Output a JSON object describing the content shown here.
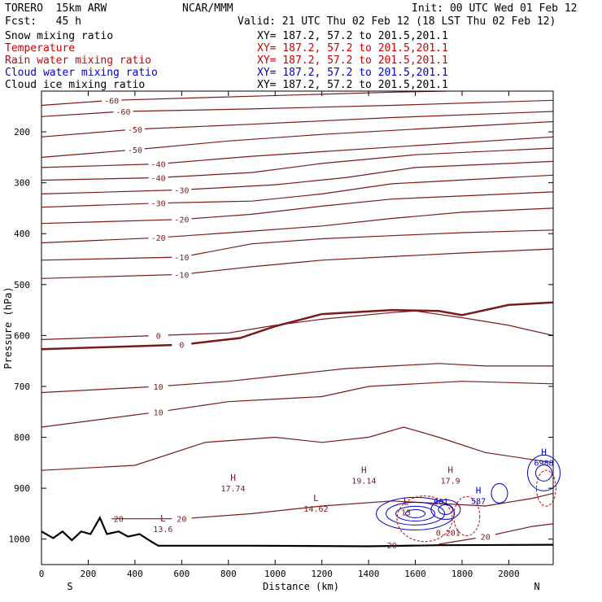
{
  "header": {
    "model": "TORERO  15km ARW",
    "center": "NCAR/MMM",
    "init": "Init: 00 UTC Wed 01 Feb 12",
    "fcst": "Fcst:   45 h",
    "valid": "Valid: 21 UTC Thu 02 Feb 12 (18 LST Thu 02 Feb 12)"
  },
  "legend": [
    {
      "label": "Snow mixing ratio",
      "xy": "XY= 187.2, 57.2 to 201.5,201.1",
      "color": "#000000"
    },
    {
      "label": "Temperature",
      "xy": "XY= 187.2, 57.2 to 201.5,201.1",
      "color": "#cc0000"
    },
    {
      "label": "Rain water mixing ratio",
      "xy": "XY= 187.2, 57.2 to 201.5,201.1",
      "color": "#cc0000"
    },
    {
      "label": "Cloud water mixing ratio",
      "xy": "XY= 187.2, 57.2 to 201.5,201.1",
      "color": "#0000cc"
    },
    {
      "label": "Cloud ice mixing ratio",
      "xy": "XY= 187.2, 57.2 to 201.5,201.1",
      "color": "#000000"
    }
  ],
  "colors": {
    "temperature": "#7a1a1a",
    "terrain": "#000000",
    "cloud_water": "#0000cc",
    "rain_water": "#cc0000",
    "axes": "#000000"
  },
  "chart_data": {
    "type": "contour-cross-section",
    "xlabel": "Distance (km)",
    "ylabel": "Pressure (hPa)",
    "xlim": [
      0,
      2190
    ],
    "ylim": [
      1050,
      120
    ],
    "x_ticks": [
      0,
      200,
      400,
      600,
      800,
      1000,
      1200,
      1400,
      1600,
      1800,
      2000
    ],
    "y_ticks": [
      200,
      300,
      400,
      500,
      600,
      700,
      800,
      900,
      1000
    ],
    "x_end_labels": {
      "left": "S",
      "right": "N"
    },
    "temperature_isotherms": [
      {
        "label": "-60",
        "points": [
          [
            0,
            148
          ],
          [
            300,
            138
          ],
          [
            900,
            130
          ],
          [
            1500,
            122
          ],
          [
            2190,
            116
          ]
        ]
      },
      {
        "label": "-60",
        "points": [
          [
            0,
            170
          ],
          [
            350,
            160
          ],
          [
            900,
            155
          ],
          [
            1500,
            148
          ],
          [
            2190,
            138
          ]
        ]
      },
      {
        "label": "-50",
        "points": [
          [
            0,
            210
          ],
          [
            400,
            195
          ],
          [
            900,
            185
          ],
          [
            1500,
            172
          ],
          [
            2190,
            160
          ]
        ]
      },
      {
        "label": "-50",
        "points": [
          [
            0,
            250
          ],
          [
            400,
            235
          ],
          [
            800,
            218
          ],
          [
            1200,
            205
          ],
          [
            1700,
            192
          ],
          [
            2190,
            180
          ]
        ]
      },
      {
        "label": "-40",
        "points": [
          [
            0,
            270
          ],
          [
            500,
            263
          ],
          [
            900,
            248
          ],
          [
            1500,
            230
          ],
          [
            2190,
            210
          ]
        ]
      },
      {
        "label": "-40",
        "points": [
          [
            0,
            295
          ],
          [
            500,
            290
          ],
          [
            900,
            280
          ],
          [
            1200,
            262
          ],
          [
            1600,
            245
          ],
          [
            2190,
            232
          ]
        ]
      },
      {
        "label": "-30",
        "points": [
          [
            0,
            322
          ],
          [
            600,
            314
          ],
          [
            1000,
            304
          ],
          [
            1300,
            290
          ],
          [
            1600,
            270
          ],
          [
            2190,
            258
          ]
        ]
      },
      {
        "label": "-30",
        "points": [
          [
            0,
            348
          ],
          [
            500,
            340
          ],
          [
            900,
            336
          ],
          [
            1200,
            322
          ],
          [
            1500,
            302
          ],
          [
            2190,
            285
          ]
        ]
      },
      {
        "label": "-20",
        "points": [
          [
            0,
            380
          ],
          [
            600,
            372
          ],
          [
            900,
            362
          ],
          [
            1200,
            346
          ],
          [
            1500,
            332
          ],
          [
            2190,
            318
          ]
        ]
      },
      {
        "label": "-20",
        "points": [
          [
            0,
            418
          ],
          [
            500,
            408
          ],
          [
            900,
            395
          ],
          [
            1200,
            385
          ],
          [
            1500,
            370
          ],
          [
            1800,
            358
          ],
          [
            2190,
            350
          ]
        ]
      },
      {
        "label": "-10",
        "points": [
          [
            0,
            452
          ],
          [
            600,
            446
          ],
          [
            900,
            420
          ],
          [
            1200,
            410
          ],
          [
            1500,
            404
          ],
          [
            1800,
            398
          ],
          [
            2190,
            393
          ]
        ]
      },
      {
        "label": "-10",
        "points": [
          [
            0,
            488
          ],
          [
            600,
            480
          ],
          [
            900,
            465
          ],
          [
            1200,
            452
          ],
          [
            1500,
            445
          ],
          [
            1800,
            438
          ],
          [
            2190,
            430
          ]
        ]
      },
      {
        "label": "0",
        "bold": true,
        "points": [
          [
            0,
            627
          ],
          [
            600,
            618
          ],
          [
            850,
            605
          ],
          [
            1000,
            582
          ],
          [
            1200,
            558
          ],
          [
            1500,
            550
          ],
          [
            1700,
            552
          ],
          [
            1800,
            560
          ],
          [
            2000,
            540
          ],
          [
            2190,
            535
          ]
        ]
      },
      {
        "label": "0",
        "points": [
          [
            0,
            608
          ],
          [
            500,
            600
          ],
          [
            800,
            595
          ],
          [
            1000,
            580
          ],
          [
            1200,
            568
          ],
          [
            1500,
            555
          ],
          [
            1600,
            552
          ],
          [
            1800,
            565
          ],
          [
            2000,
            580
          ],
          [
            2190,
            600
          ]
        ]
      },
      {
        "label": "10",
        "points": [
          [
            0,
            712
          ],
          [
            500,
            700
          ],
          [
            800,
            690
          ],
          [
            1000,
            680
          ],
          [
            1300,
            665
          ],
          [
            1500,
            660
          ],
          [
            1700,
            655
          ],
          [
            1900,
            660
          ],
          [
            2190,
            660
          ]
        ]
      },
      {
        "label": "10",
        "points": [
          [
            0,
            780
          ],
          [
            500,
            750
          ],
          [
            800,
            730
          ],
          [
            1000,
            725
          ],
          [
            1200,
            720
          ],
          [
            1400,
            700
          ],
          [
            1600,
            695
          ],
          [
            1800,
            690
          ],
          [
            2190,
            695
          ]
        ]
      },
      {
        "label": "",
        "points": [
          [
            0,
            865
          ],
          [
            400,
            855
          ],
          [
            700,
            810
          ],
          [
            1000,
            800
          ],
          [
            1200,
            810
          ],
          [
            1400,
            800
          ],
          [
            1550,
            780
          ],
          [
            1700,
            800
          ],
          [
            1900,
            830
          ],
          [
            2190,
            850
          ]
        ]
      },
      {
        "label": "20",
        "points": [
          [
            300,
            960
          ],
          [
            600,
            960
          ],
          [
            900,
            950
          ],
          [
            1200,
            935
          ],
          [
            1500,
            925
          ],
          [
            1700,
            930
          ],
          [
            1900,
            935
          ],
          [
            2100,
            920
          ],
          [
            2190,
            910
          ]
        ]
      },
      {
        "label": "20",
        "points": [
          [
            1700,
            1010
          ],
          [
            1900,
            995
          ],
          [
            2000,
            985
          ],
          [
            2100,
            975
          ],
          [
            2190,
            970
          ]
        ]
      }
    ],
    "terrain": [
      [
        0,
        985
      ],
      [
        50,
        998
      ],
      [
        90,
        985
      ],
      [
        130,
        1002
      ],
      [
        170,
        985
      ],
      [
        210,
        990
      ],
      [
        250,
        958
      ],
      [
        280,
        990
      ],
      [
        330,
        985
      ],
      [
        370,
        995
      ],
      [
        420,
        990
      ],
      [
        470,
        1005
      ],
      [
        500,
        1013
      ],
      [
        900,
        1013
      ],
      [
        1400,
        1014
      ],
      [
        1700,
        1012
      ],
      [
        2190,
        1011
      ]
    ],
    "annotations": [
      {
        "text": "H",
        "value": "17.74",
        "x": 820,
        "p": 895
      },
      {
        "text": "H",
        "value": "19.14",
        "x": 1380,
        "p": 880
      },
      {
        "text": "H",
        "value": "17.9",
        "x": 1750,
        "p": 880
      },
      {
        "text": "L",
        "value": "14.62",
        "x": 1175,
        "p": 935
      },
      {
        "text": "L",
        "value": "13.6",
        "x": 520,
        "p": 975
      },
      {
        "text": "L",
        "value": "13",
        "x": 1560,
        "p": 942
      },
      {
        "text": "H",
        "value": "587",
        "x": 1870,
        "p": 920
      },
      {
        "text": "H",
        "value": "6988",
        "x": 2150,
        "p": 845
      },
      {
        "text": "",
        "value": "001",
        "x": 1710,
        "p": 925
      },
      {
        "text": "",
        "value": "0.201",
        "x": 1740,
        "p": 987
      },
      {
        "text": "",
        "value": "20",
        "x": 330,
        "p": 960
      },
      {
        "text": "",
        "value": "20",
        "x": 1500,
        "p": 1012
      }
    ]
  }
}
